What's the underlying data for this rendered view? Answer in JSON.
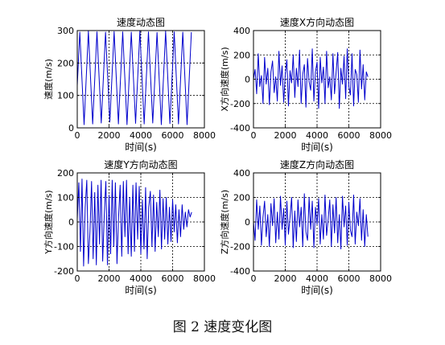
{
  "figure": {
    "caption": "图 2  速度变化图"
  },
  "chart_data": [
    {
      "type": "line",
      "title": "速度动态图",
      "xlabel": "时间(s)",
      "ylabel": "速度(m/s)",
      "xlim": [
        0,
        8000
      ],
      "ylim": [
        0,
        300
      ],
      "xticks": [
        0,
        2000,
        4000,
        6000,
        8000
      ],
      "yticks": [
        0,
        100,
        200,
        300
      ],
      "grid": true,
      "grid_style": "dashed",
      "line_color": "#0000cc",
      "series": [
        {
          "x": [
            0,
            160,
            430,
            700,
            970,
            1240,
            1510,
            1780,
            2050,
            2320,
            2590,
            2860,
            3130,
            3400,
            3670,
            3940,
            4210,
            4480,
            4750,
            5020,
            5290,
            5560,
            5830,
            6100,
            6370,
            6640,
            6910,
            7180
          ],
          "values": [
            130,
            295,
            10,
            298,
            12,
            296,
            15,
            295,
            18,
            297,
            12,
            296,
            10,
            295,
            14,
            298,
            12,
            296,
            15,
            294,
            10,
            298,
            13,
            296,
            12,
            295,
            10,
            295
          ]
        }
      ]
    },
    {
      "type": "line",
      "title": "速度X方向动态图",
      "xlabel": "时间(s)",
      "ylabel": "X方向速度(m/s)",
      "xlim": [
        0,
        8000
      ],
      "ylim": [
        -400,
        400
      ],
      "xticks": [
        0,
        2000,
        4000,
        6000,
        8000
      ],
      "yticks": [
        -400,
        -200,
        0,
        200,
        400
      ],
      "grid": true,
      "grid_style": "dashed",
      "line_color": "#0000cc",
      "series": [
        {
          "x": [
            0,
            100,
            200,
            300,
            400,
            500,
            600,
            700,
            800,
            900,
            1000,
            1100,
            1200,
            1300,
            1400,
            1500,
            1600,
            1700,
            1800,
            1900,
            2000,
            2100,
            2200,
            2300,
            2400,
            2500,
            2600,
            2700,
            2800,
            2900,
            3000,
            3100,
            3200,
            3300,
            3400,
            3500,
            3600,
            3700,
            3800,
            3900,
            4000,
            4100,
            4200,
            4300,
            4400,
            4500,
            4600,
            4700,
            4800,
            4900,
            5000,
            5100,
            5200,
            5300,
            5400,
            5500,
            5600,
            5700,
            5800,
            5900,
            6000,
            6100,
            6200,
            6300,
            6400,
            6500,
            6600,
            6700,
            6800,
            6900,
            7000,
            7100,
            7200
          ],
          "values": [
            0,
            80,
            -120,
            210,
            -60,
            30,
            -200,
            180,
            -40,
            90,
            -210,
            60,
            150,
            -110,
            20,
            -180,
            230,
            -50,
            110,
            -190,
            40,
            160,
            -220,
            70,
            -30,
            200,
            -150,
            90,
            -60,
            240,
            -200,
            40,
            120,
            -230,
            170,
            -20,
            -90,
            250,
            -180,
            60,
            140,
            -240,
            180,
            -30,
            100,
            -200,
            230,
            -70,
            20,
            -170,
            210,
            -120,
            60,
            220,
            -240,
            90,
            -40,
            190,
            -160,
            250,
            -60,
            -130,
            210,
            -220,
            80,
            40,
            -190,
            240,
            -80,
            120,
            -170,
            60,
            20
          ]
        }
      ]
    },
    {
      "type": "line",
      "title": "速度Y方向动态图",
      "xlabel": "时间(s)",
      "ylabel": "Y方向速度(m/s)",
      "xlim": [
        0,
        8000
      ],
      "ylim": [
        -200,
        200
      ],
      "xticks": [
        0,
        2000,
        4000,
        6000,
        8000
      ],
      "yticks": [
        -200,
        -100,
        0,
        100,
        200
      ],
      "grid": true,
      "grid_style": "dashed",
      "line_color": "#0000cc",
      "series": [
        {
          "x": [
            0,
            100,
            200,
            300,
            400,
            500,
            600,
            700,
            800,
            900,
            1000,
            1100,
            1200,
            1300,
            1400,
            1500,
            1600,
            1700,
            1800,
            1900,
            2000,
            2100,
            2200,
            2300,
            2400,
            2500,
            2600,
            2700,
            2800,
            2900,
            3000,
            3100,
            3200,
            3300,
            3400,
            3500,
            3600,
            3700,
            3800,
            3900,
            4000,
            4100,
            4200,
            4300,
            4400,
            4500,
            4600,
            4700,
            4800,
            4900,
            5000,
            5100,
            5200,
            5300,
            5400,
            5500,
            5600,
            5700,
            5800,
            5900,
            6000,
            6100,
            6200,
            6300,
            6400,
            6500,
            6600,
            6700,
            6800,
            6900,
            7000,
            7100,
            7200
          ],
          "values": [
            10,
            160,
            -120,
            175,
            -180,
            60,
            170,
            -170,
            -40,
            165,
            -150,
            120,
            -175,
            150,
            -90,
            170,
            -160,
            30,
            165,
            -175,
            110,
            -130,
            170,
            -100,
            160,
            -170,
            20,
            150,
            -140,
            165,
            -60,
            170,
            -130,
            100,
            -140,
            150,
            -120,
            160,
            -70,
            145,
            -130,
            90,
            -110,
            140,
            -150,
            60,
            125,
            -100,
            110,
            -120,
            80,
            -60,
            130,
            -110,
            95,
            -70,
            100,
            -90,
            60,
            -80,
            90,
            -40,
            70,
            -85,
            50,
            -60,
            70,
            -30,
            40,
            -20,
            50,
            20,
            40
          ]
        }
      ]
    },
    {
      "type": "line",
      "title": "速度Z方向动态图",
      "xlabel": "时间(s)",
      "ylabel": "Z方向速度(m/s)",
      "xlim": [
        0,
        8000
      ],
      "ylim": [
        -400,
        400
      ],
      "xticks": [
        0,
        2000,
        4000,
        6000,
        8000
      ],
      "yticks": [
        -400,
        -200,
        0,
        200,
        400
      ],
      "grid": true,
      "grid_style": "dashed",
      "line_color": "#0000cc",
      "series": [
        {
          "x": [
            0,
            100,
            200,
            300,
            400,
            500,
            600,
            700,
            800,
            900,
            1000,
            1100,
            1200,
            1300,
            1400,
            1500,
            1600,
            1700,
            1800,
            1900,
            2000,
            2100,
            2200,
            2300,
            2400,
            2500,
            2600,
            2700,
            2800,
            2900,
            3000,
            3100,
            3200,
            3300,
            3400,
            3500,
            3600,
            3700,
            3800,
            3900,
            4000,
            4100,
            4200,
            4300,
            4400,
            4500,
            4600,
            4700,
            4800,
            4900,
            5000,
            5100,
            5200,
            5300,
            5400,
            5500,
            5600,
            5700,
            5800,
            5900,
            6000,
            6100,
            6200,
            6300,
            6400,
            6500,
            6600,
            6700,
            6800,
            6900,
            7000,
            7100,
            7200
          ],
          "values": [
            0,
            -150,
            180,
            -60,
            130,
            -190,
            40,
            170,
            -120,
            60,
            -200,
            150,
            -30,
            190,
            -170,
            80,
            -140,
            210,
            -60,
            110,
            -190,
            170,
            -100,
            40,
            200,
            -210,
            90,
            -160,
            180,
            -40,
            120,
            -200,
            230,
            -80,
            -150,
            200,
            -60,
            170,
            -210,
            120,
            -20,
            190,
            -180,
            60,
            -140,
            220,
            -110,
            20,
            180,
            -200,
            140,
            -90,
            200,
            -170,
            60,
            -220,
            210,
            -40,
            130,
            -190,
            160,
            -70,
            -120,
            220,
            -180,
            80,
            -30,
            190,
            -150,
            100,
            -200,
            60,
            -120
          ]
        }
      ]
    }
  ]
}
